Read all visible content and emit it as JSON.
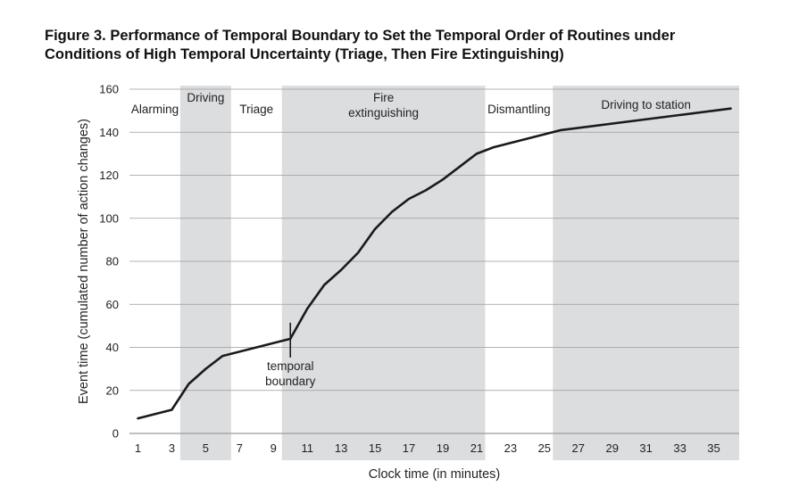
{
  "title": {
    "line1": "Figure 3.  Performance of Temporal Boundary to Set the Temporal Order of Routines under",
    "line2": "Conditions of High Temporal Uncertainty (Triage, Then Fire Extinguishing)"
  },
  "chart_data": {
    "type": "line",
    "xlabel": "Clock time (in minutes)",
    "ylabel": "Event time (cumulated number of action changes)",
    "xlim": [
      0.5,
      36.5
    ],
    "ylim": [
      0,
      160
    ],
    "x_ticks": [
      "1",
      "3",
      "5",
      "7",
      "9",
      "11",
      "13",
      "15",
      "17",
      "19",
      "21",
      "23",
      "25",
      "27",
      "29",
      "31",
      "33",
      "35"
    ],
    "y_ticks": [
      "0",
      "20",
      "40",
      "60",
      "80",
      "100",
      "120",
      "140",
      "160"
    ],
    "grid": "horizontal",
    "series": [
      {
        "x": [
          1,
          3,
          4,
          5,
          6,
          10,
          11,
          12,
          13,
          14,
          15,
          16,
          17,
          18,
          19,
          20,
          21,
          22,
          26,
          36
        ],
        "y": [
          7,
          11,
          23,
          30,
          36,
          44,
          58,
          69,
          76,
          84,
          95,
          103,
          109,
          113,
          118,
          124,
          130,
          133,
          141,
          151
        ]
      }
    ],
    "phases": [
      {
        "label": [
          "Alarming"
        ],
        "start": 0.5,
        "end": 3.5,
        "shaded": false
      },
      {
        "label": [
          "Driving"
        ],
        "start": 3.5,
        "end": 6.5,
        "shaded": true
      },
      {
        "label": [
          "Triage"
        ],
        "start": 6.5,
        "end": 9.5,
        "shaded": false
      },
      {
        "label": [
          "Fire",
          "extinguishing"
        ],
        "start": 9.5,
        "end": 21.5,
        "shaded": true
      },
      {
        "label": [
          "Dismantling"
        ],
        "start": 21.5,
        "end": 25.5,
        "shaded": false
      },
      {
        "label": [
          "Driving to station"
        ],
        "start": 25.5,
        "end": 36.5,
        "shaded": true
      }
    ],
    "annotations": [
      {
        "text": [
          "temporal",
          "boundary"
        ],
        "x": 10,
        "y": 44
      }
    ],
    "colors": {
      "line": "#1a1a1a",
      "shade": "#dcdddf",
      "grid": "#9a9a9a"
    }
  }
}
